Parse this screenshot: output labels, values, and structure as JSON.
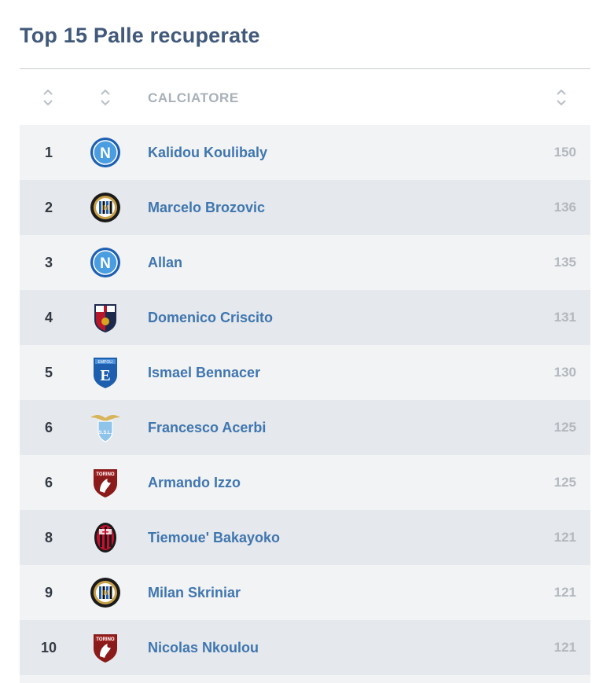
{
  "page": {
    "title": "Top 15 Palle recuperate"
  },
  "table": {
    "headers": {
      "position": "",
      "team": "",
      "player": "CALCIATORE",
      "value": ""
    },
    "rows": [
      {
        "position": "1",
        "team_icon": "napoli-logo-icon",
        "player": "Kalidou Koulibaly",
        "value": "150"
      },
      {
        "position": "2",
        "team_icon": "inter-logo-icon",
        "player": "Marcelo Brozovic",
        "value": "136"
      },
      {
        "position": "3",
        "team_icon": "napoli-logo-icon",
        "player": "Allan",
        "value": "135"
      },
      {
        "position": "4",
        "team_icon": "genoa-logo-icon",
        "player": "Domenico Criscito",
        "value": "131"
      },
      {
        "position": "5",
        "team_icon": "empoli-logo-icon",
        "player": "Ismael Bennacer",
        "value": "130"
      },
      {
        "position": "6",
        "team_icon": "lazio-logo-icon",
        "player": "Francesco Acerbi",
        "value": "125"
      },
      {
        "position": "6",
        "team_icon": "torino-logo-icon",
        "player": "Armando Izzo",
        "value": "125"
      },
      {
        "position": "8",
        "team_icon": "milan-logo-icon",
        "player": "Tiemoue' Bakayoko",
        "value": "121"
      },
      {
        "position": "9",
        "team_icon": "inter-logo-icon",
        "player": "Milan Skriniar",
        "value": "121"
      },
      {
        "position": "10",
        "team_icon": "torino-logo-icon",
        "player": "Nicolas Nkoulou",
        "value": "121"
      }
    ]
  },
  "colors": {
    "title": "#41597a",
    "player_link": "#3f76b0",
    "row_light": "#f2f3f5",
    "row_dark": "#e5e8ec"
  }
}
